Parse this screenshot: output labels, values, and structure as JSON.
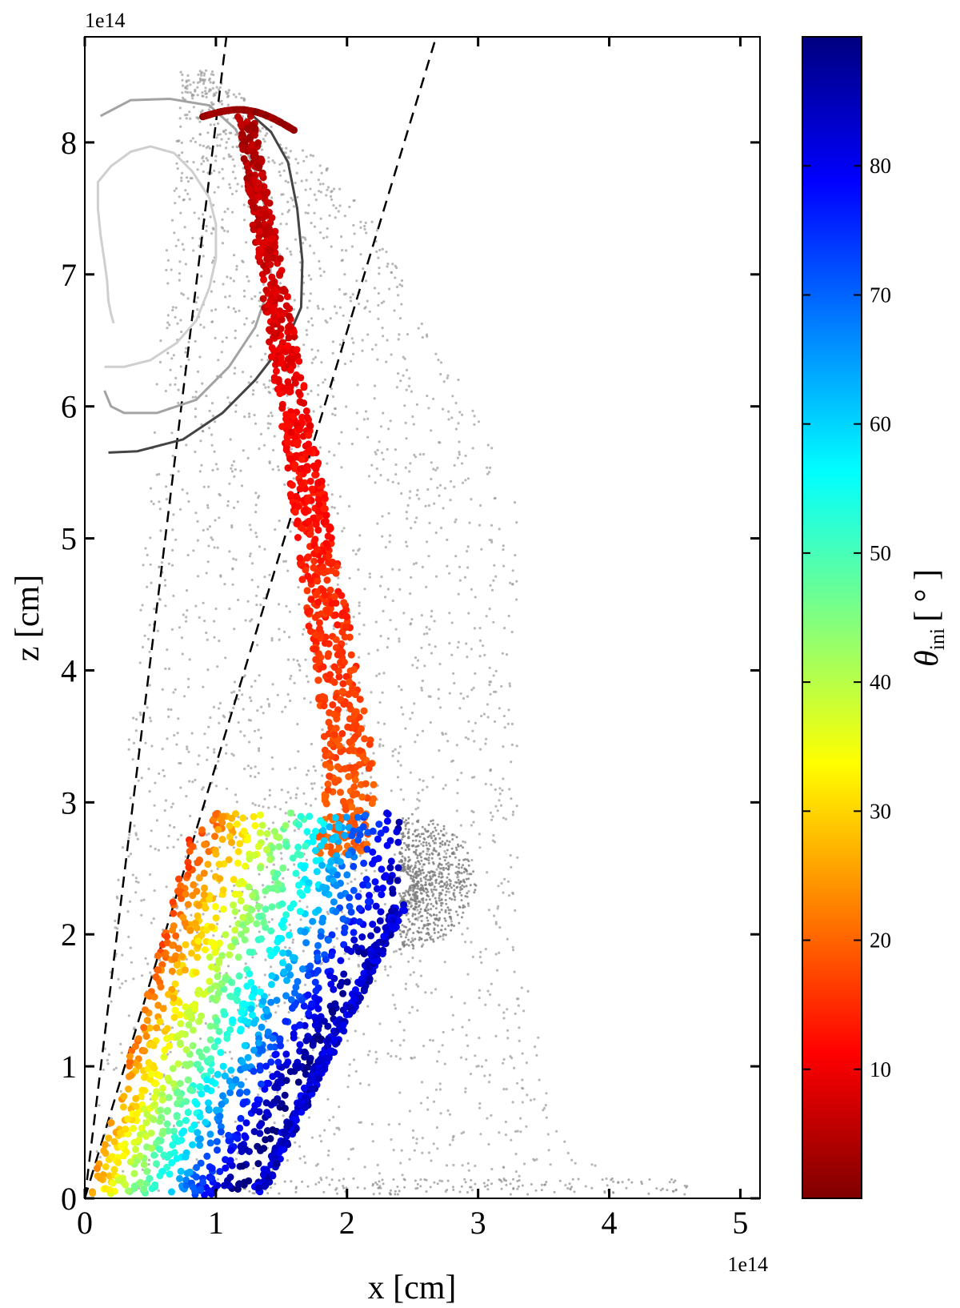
{
  "chart_data": {
    "type": "scatter",
    "xlabel": "x [cm]",
    "ylabel": "z [cm]",
    "x_offset_label": "1e14",
    "y_offset_label": "1e14",
    "xlim": [
      0,
      5.15
    ],
    "ylim": [
      0,
      8.8
    ],
    "x_ticks": [
      0,
      1,
      2,
      3,
      4,
      5
    ],
    "y_ticks": [
      0,
      1,
      2,
      3,
      4,
      5,
      6,
      7,
      8
    ],
    "x_tick_labels": [
      "0",
      "1",
      "2",
      "3",
      "4",
      "5"
    ],
    "y_tick_labels": [
      "0",
      "1",
      "2",
      "3",
      "4",
      "5",
      "6",
      "7",
      "8"
    ],
    "colorbar": {
      "label_main": "θ",
      "label_sub": "ini",
      "label_unit": "[ ° ]",
      "range": [
        0,
        90
      ],
      "ticks": [
        10,
        20,
        30,
        40,
        50,
        60,
        70,
        80
      ],
      "tick_labels": [
        "10",
        "20",
        "30",
        "40",
        "50",
        "60",
        "70",
        "80"
      ],
      "colormap": "jet_reversed",
      "colors": [
        "#7f0000",
        "#ff0000",
        "#ff8000",
        "#ffff00",
        "#80ff80",
        "#00ffff",
        "#0080ff",
        "#0000ff",
        "#00007f"
      ]
    },
    "dashed_lines": [
      {
        "from": [
          0,
          0
        ],
        "to": [
          1.08,
          8.8
        ]
      },
      {
        "from": [
          0,
          0
        ],
        "to": [
          2.68,
          8.8
        ]
      }
    ],
    "contours": [
      {
        "color": "#cfcfcf",
        "points": [
          [
            0.22,
            6.63
          ],
          [
            0.2,
            6.7
          ],
          [
            0.18,
            6.8
          ],
          [
            0.17,
            6.95
          ],
          [
            0.15,
            7.1
          ],
          [
            0.12,
            7.3
          ],
          [
            0.1,
            7.5
          ],
          [
            0.1,
            7.7
          ],
          [
            0.2,
            7.82
          ],
          [
            0.35,
            7.93
          ],
          [
            0.5,
            7.97
          ],
          [
            0.68,
            7.92
          ],
          [
            0.82,
            7.78
          ],
          [
            0.95,
            7.58
          ],
          [
            1.0,
            7.38
          ],
          [
            1.0,
            7.12
          ],
          [
            0.95,
            6.9
          ],
          [
            0.85,
            6.65
          ],
          [
            0.7,
            6.48
          ],
          [
            0.5,
            6.35
          ],
          [
            0.3,
            6.3
          ],
          [
            0.15,
            6.3
          ]
        ]
      },
      {
        "color": "#a3a3a3",
        "points": [
          [
            0.15,
            6.12
          ],
          [
            0.2,
            6.0
          ],
          [
            0.3,
            5.95
          ],
          [
            0.55,
            5.95
          ],
          [
            0.85,
            6.05
          ],
          [
            1.1,
            6.3
          ],
          [
            1.3,
            6.6
          ],
          [
            1.42,
            6.95
          ],
          [
            1.4,
            7.4
          ],
          [
            1.3,
            7.8
          ],
          [
            1.15,
            8.1
          ],
          [
            0.95,
            8.28
          ],
          [
            0.65,
            8.33
          ],
          [
            0.35,
            8.32
          ],
          [
            0.12,
            8.2
          ]
        ]
      },
      {
        "color": "#444444",
        "points": [
          [
            0.18,
            5.65
          ],
          [
            0.4,
            5.66
          ],
          [
            0.75,
            5.75
          ],
          [
            1.05,
            5.95
          ],
          [
            1.3,
            6.2
          ],
          [
            1.55,
            6.52
          ],
          [
            1.65,
            6.75
          ],
          [
            1.66,
            7.1
          ],
          [
            1.62,
            7.5
          ],
          [
            1.55,
            7.85
          ],
          [
            1.42,
            8.08
          ],
          [
            1.26,
            8.22
          ],
          [
            1.08,
            8.25
          ],
          [
            0.95,
            8.2
          ]
        ]
      }
    ],
    "particle_series": [
      {
        "role": "colored-by-theta_ini",
        "value_range": [
          0,
          90
        ]
      },
      {
        "role": "grey-background"
      }
    ]
  }
}
